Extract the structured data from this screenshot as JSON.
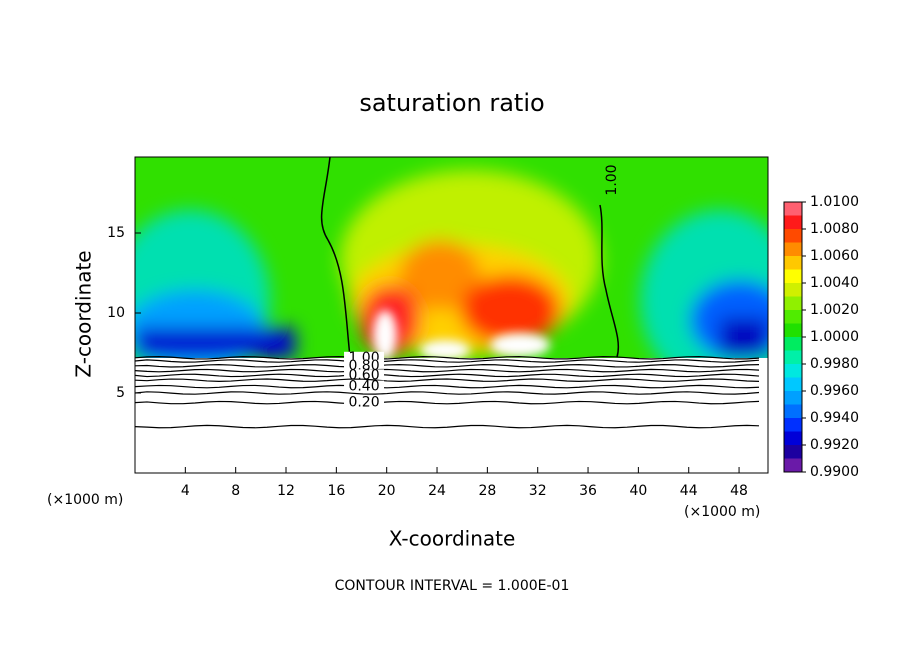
{
  "chart_data": {
    "type": "contour",
    "title": "saturation ratio",
    "x_label": "X-coordinate",
    "y_label": "Z-coordinate",
    "x_unit": "(×1000 m)",
    "footer": "CONTOUR INTERVAL = 1.000E-01",
    "xlim": [
      0,
      50.3
    ],
    "ylim": [
      0,
      19.75
    ],
    "xticks": [
      4,
      8,
      12,
      16,
      20,
      24,
      28,
      32,
      36,
      40,
      44,
      48
    ],
    "yticks": [
      5,
      10,
      15
    ],
    "contours": [
      {
        "level": 1.0,
        "label": "1.00",
        "z": 7.2
      },
      {
        "level": 0.9,
        "z": 7.0
      },
      {
        "level": 0.8,
        "label": "0.80",
        "z": 6.7
      },
      {
        "level": 0.7,
        "z": 6.4
      },
      {
        "level": 0.6,
        "label": "0.60",
        "z": 6.1
      },
      {
        "level": 0.5,
        "z": 5.8
      },
      {
        "level": 0.4,
        "label": "0.40",
        "z": 5.4
      },
      {
        "level": 0.3,
        "z": 5.0
      },
      {
        "level": 0.2,
        "label": "0.20",
        "z": 4.4
      },
      {
        "level": 0.1,
        "z": 2.9
      }
    ],
    "colorbar": {
      "lim": [
        0.99,
        1.01
      ],
      "levels": [
        0.99,
        0.991,
        0.992,
        0.993,
        0.994,
        0.995,
        0.996,
        0.997,
        0.998,
        0.999,
        1.0,
        1.001,
        1.002,
        1.003,
        1.004,
        1.005,
        1.006,
        1.007,
        1.008,
        1.009,
        1.01
      ],
      "colors": [
        "#6a1aa8",
        "#1c00a0",
        "#0000d8",
        "#0030ff",
        "#0070ff",
        "#00a0ff",
        "#00c8ff",
        "#00e8e0",
        "#00f0a8",
        "#00ec60",
        "#20e000",
        "#50ec00",
        "#90f000",
        "#d0f000",
        "#ffff00",
        "#ffc800",
        "#ff8c00",
        "#ff4a00",
        "#ff1a1a",
        "#ff6070"
      ],
      "ticks": [
        {
          "value": 0.99,
          "label": "0.9900"
        },
        {
          "value": 0.992,
          "label": "0.9920"
        },
        {
          "value": 0.994,
          "label": "0.9940"
        },
        {
          "value": 0.996,
          "label": "0.9960"
        },
        {
          "value": 0.998,
          "label": "0.9980"
        },
        {
          "value": 1.0,
          "label": "1.0000"
        },
        {
          "value": 1.002,
          "label": "1.0020"
        },
        {
          "value": 1.004,
          "label": "1.0040"
        },
        {
          "value": 1.006,
          "label": "1.0060"
        },
        {
          "value": 1.008,
          "label": "1.0080"
        },
        {
          "value": 1.01,
          "label": "1.0100"
        }
      ]
    }
  }
}
